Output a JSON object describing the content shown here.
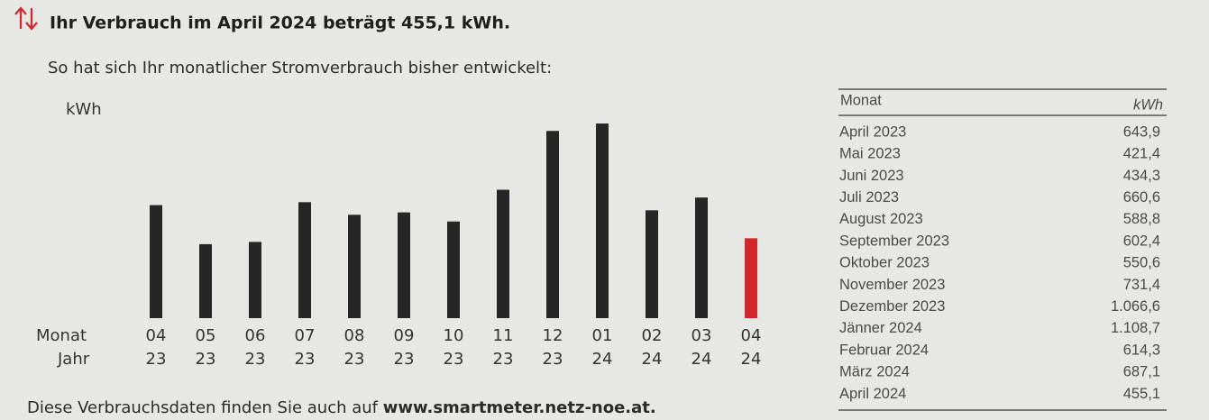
{
  "header": {
    "title": "Ihr Verbrauch im April 2024 beträgt 455,1 kWh.",
    "subtitle": "So hat sich Ihr monatlicher Stromverbrauch bisher entwickelt:"
  },
  "chart_data": {
    "type": "bar",
    "y_label": "kWh",
    "row_labels": [
      "Monat",
      "Jahr"
    ],
    "categories": [
      "04",
      "05",
      "06",
      "07",
      "08",
      "09",
      "10",
      "11",
      "12",
      "01",
      "02",
      "03",
      "04"
    ],
    "years": [
      "23",
      "23",
      "23",
      "23",
      "23",
      "23",
      "23",
      "23",
      "23",
      "24",
      "24",
      "24",
      "24"
    ],
    "values": [
      643.9,
      421.4,
      434.3,
      660.6,
      588.8,
      602.4,
      550.6,
      731.4,
      1066.6,
      1108.7,
      614.3,
      687.1,
      455.1
    ],
    "colors": [
      "#262626",
      "#262626",
      "#262626",
      "#262626",
      "#262626",
      "#262626",
      "#262626",
      "#262626",
      "#262626",
      "#262626",
      "#262626",
      "#262626",
      "#d3272d"
    ],
    "ylim": [
      0,
      1150
    ]
  },
  "table": {
    "header": [
      "Monat",
      "kWh"
    ],
    "rows": [
      [
        "April 2023",
        "643,9"
      ],
      [
        "Mai 2023",
        "421,4"
      ],
      [
        "Juni 2023",
        "434,3"
      ],
      [
        "Juli 2023",
        "660,6"
      ],
      [
        "August 2023",
        "588,8"
      ],
      [
        "September 2023",
        "602,4"
      ],
      [
        "Oktober 2023",
        "550,6"
      ],
      [
        "November 2023",
        "731,4"
      ],
      [
        "Dezember 2023",
        "1.066,6"
      ],
      [
        "Jänner 2024",
        "1.108,7"
      ],
      [
        "Februar 2024",
        "614,3"
      ],
      [
        "März 2024",
        "687,1"
      ],
      [
        "April 2024",
        "455,1"
      ]
    ]
  },
  "footer": {
    "text": "Diese Verbrauchsdaten finden Sie auch auf",
    "link": "www.smartmeter.netz-noe.at."
  }
}
